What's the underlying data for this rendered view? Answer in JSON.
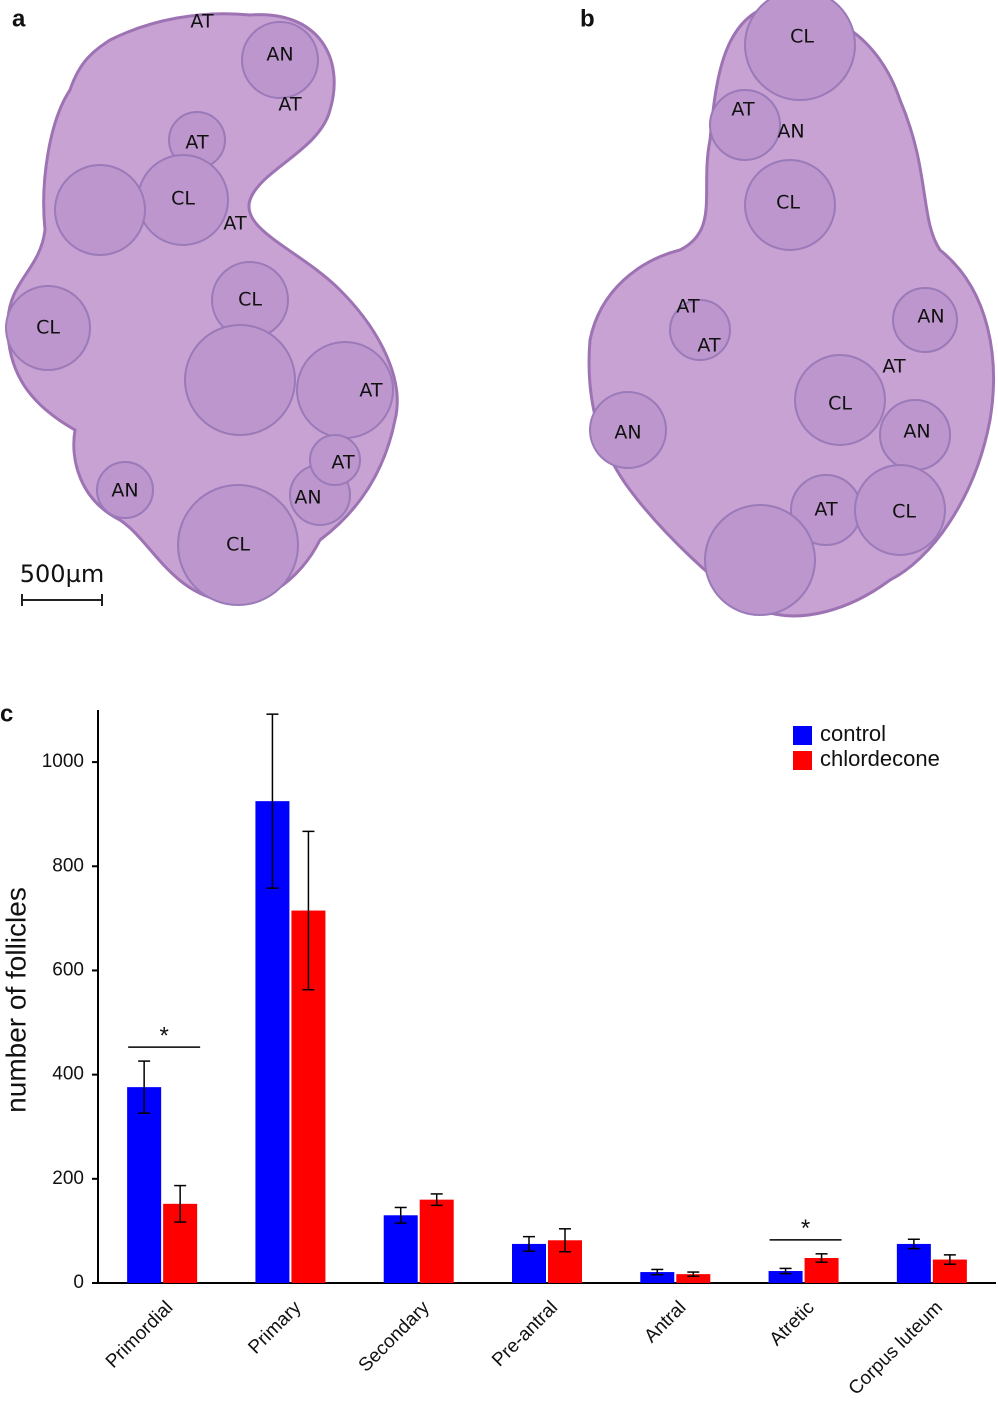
{
  "panels": [
    {
      "label": "a",
      "regions": [
        "AT",
        "AN",
        "AT",
        "AT",
        "CL",
        "AT",
        "CL",
        "CL",
        "AT",
        "AT",
        "AN",
        "AN",
        "CL"
      ]
    },
    {
      "label": "b",
      "regions": [
        "CL",
        "AT",
        "AN",
        "CL",
        "AT",
        "AT",
        "AN",
        "AT",
        "CL",
        "AN",
        "AN",
        "AT",
        "CL"
      ]
    }
  ],
  "scale_bar": "500µm",
  "chart_data": {
    "type": "bar",
    "panel_label": "c",
    "y_label": "number of follicles",
    "categories": [
      "Primordial",
      "Primary",
      "Secondary",
      "Pre-antral",
      "Antral",
      "Atretic",
      "Corpus luteum"
    ],
    "series": [
      {
        "name": "control",
        "color": "#0000ff",
        "values": [
          376,
          925,
          130,
          75,
          21,
          23,
          75
        ],
        "errors": [
          50,
          167,
          15,
          14,
          5,
          5,
          9
        ]
      },
      {
        "name": "chlordecone",
        "color": "#ff0000",
        "values": [
          152,
          715,
          160,
          82,
          17,
          48,
          45
        ],
        "errors": [
          35,
          152,
          11,
          22,
          4,
          8,
          9
        ]
      }
    ],
    "annotations": [
      {
        "text": "*",
        "category": "Primordial"
      },
      {
        "text": "*",
        "category": "Atretic"
      }
    ],
    "ylim": [
      0,
      1100
    ],
    "yticks": [
      0,
      200,
      400,
      600,
      800,
      1000
    ],
    "legend": "top-right"
  }
}
